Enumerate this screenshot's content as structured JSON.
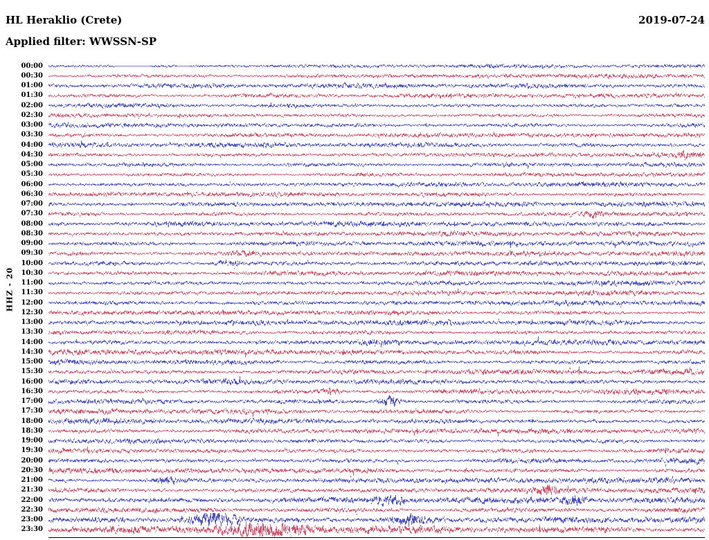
{
  "header": {
    "station": "HL Heraklio (Crete)",
    "date": "2019-07-24",
    "filter": "Applied filter: WWSSN-SP"
  },
  "chart_data": {
    "type": "line",
    "subtype": "helicorder-dayplot",
    "title": "HL Heraklio (Crete)",
    "date": "2019-07-24",
    "applied_filter": "WWSSN-SP",
    "channel_label": "HHZ - 20",
    "minutes_per_line": 30,
    "lines_per_day": 48,
    "background": "#ffffff",
    "axis_color": "#000000",
    "color_cycle": [
      "#1f26c8",
      "#d42347"
    ],
    "rows": [
      {
        "time": "00:00",
        "amp": 0.75,
        "gaps": [
          [
            0.1,
            0.155
          ],
          [
            0.195,
            0.215
          ]
        ]
      },
      {
        "time": "00:30",
        "amp": 0.9
      },
      {
        "time": "01:00",
        "amp": 0.95
      },
      {
        "time": "01:30",
        "amp": 0.9
      },
      {
        "time": "02:00",
        "amp": 0.95
      },
      {
        "time": "02:30",
        "amp": 0.9
      },
      {
        "time": "03:00",
        "amp": 0.95
      },
      {
        "time": "03:30",
        "amp": 0.9
      },
      {
        "time": "04:00",
        "amp": 1.0
      },
      {
        "time": "04:30",
        "amp": 0.95,
        "events": [
          {
            "x": 0.97,
            "a": 1.2,
            "w": 0.008
          }
        ]
      },
      {
        "time": "05:00",
        "amp": 0.95
      },
      {
        "time": "05:30",
        "amp": 0.9
      },
      {
        "time": "06:00",
        "amp": 1.0
      },
      {
        "time": "06:30",
        "amp": 0.95
      },
      {
        "time": "07:00",
        "amp": 1.0
      },
      {
        "time": "07:30",
        "amp": 1.0,
        "events": [
          {
            "x": 0.83,
            "a": 0.9,
            "w": 0.01
          }
        ]
      },
      {
        "time": "08:00",
        "amp": 1.0
      },
      {
        "time": "08:30",
        "amp": 0.95
      },
      {
        "time": "09:00",
        "amp": 1.0
      },
      {
        "time": "09:30",
        "amp": 1.0,
        "events": [
          {
            "x": 0.3,
            "a": 0.8,
            "w": 0.012
          }
        ]
      },
      {
        "time": "10:00",
        "amp": 1.05,
        "events": [
          {
            "x": 0.27,
            "a": 1.0,
            "w": 0.015
          }
        ]
      },
      {
        "time": "10:30",
        "amp": 1.0
      },
      {
        "time": "11:00",
        "amp": 1.05
      },
      {
        "time": "11:30",
        "amp": 1.0
      },
      {
        "time": "12:00",
        "amp": 1.1
      },
      {
        "time": "12:30",
        "amp": 1.0
      },
      {
        "time": "13:00",
        "amp": 1.05
      },
      {
        "time": "13:30",
        "amp": 1.0
      },
      {
        "time": "14:00",
        "amp": 1.1,
        "events": [
          {
            "x": 0.5,
            "a": 0.8,
            "w": 0.02
          }
        ]
      },
      {
        "time": "14:30",
        "amp": 1.1
      },
      {
        "time": "15:00",
        "amp": 1.1
      },
      {
        "time": "15:30",
        "amp": 1.05
      },
      {
        "time": "16:00",
        "amp": 1.05
      },
      {
        "time": "16:30",
        "amp": 1.05,
        "events": [
          {
            "x": 0.43,
            "a": 0.9,
            "w": 0.01
          }
        ]
      },
      {
        "time": "17:00",
        "amp": 1.05,
        "events": [
          {
            "x": 0.52,
            "a": 2.2,
            "w": 0.012
          }
        ]
      },
      {
        "time": "17:30",
        "amp": 1.05
      },
      {
        "time": "18:00",
        "amp": 1.05
      },
      {
        "time": "18:30",
        "amp": 1.0
      },
      {
        "time": "19:00",
        "amp": 1.05
      },
      {
        "time": "19:30",
        "amp": 1.05
      },
      {
        "time": "20:00",
        "amp": 1.1
      },
      {
        "time": "20:30",
        "amp": 1.05
      },
      {
        "time": "21:00",
        "amp": 1.1,
        "events": [
          {
            "x": 0.18,
            "a": 1.0,
            "w": 0.012
          }
        ]
      },
      {
        "time": "21:30",
        "amp": 1.15,
        "events": [
          {
            "x": 0.76,
            "a": 1.4,
            "w": 0.01
          }
        ]
      },
      {
        "time": "22:00",
        "amp": 1.2,
        "events": [
          {
            "x": 0.52,
            "a": 1.5,
            "w": 0.015
          },
          {
            "x": 0.8,
            "a": 1.2,
            "w": 0.01
          }
        ]
      },
      {
        "time": "22:30",
        "amp": 1.2
      },
      {
        "time": "23:00",
        "amp": 1.35,
        "events": [
          {
            "x": 0.25,
            "a": 2.2,
            "w": 0.025
          },
          {
            "x": 0.55,
            "a": 1.6,
            "w": 0.02
          }
        ]
      },
      {
        "time": "23:30",
        "amp": 1.5,
        "events": [
          {
            "x": 0.33,
            "a": 1.6,
            "w": 0.04
          }
        ]
      }
    ]
  }
}
